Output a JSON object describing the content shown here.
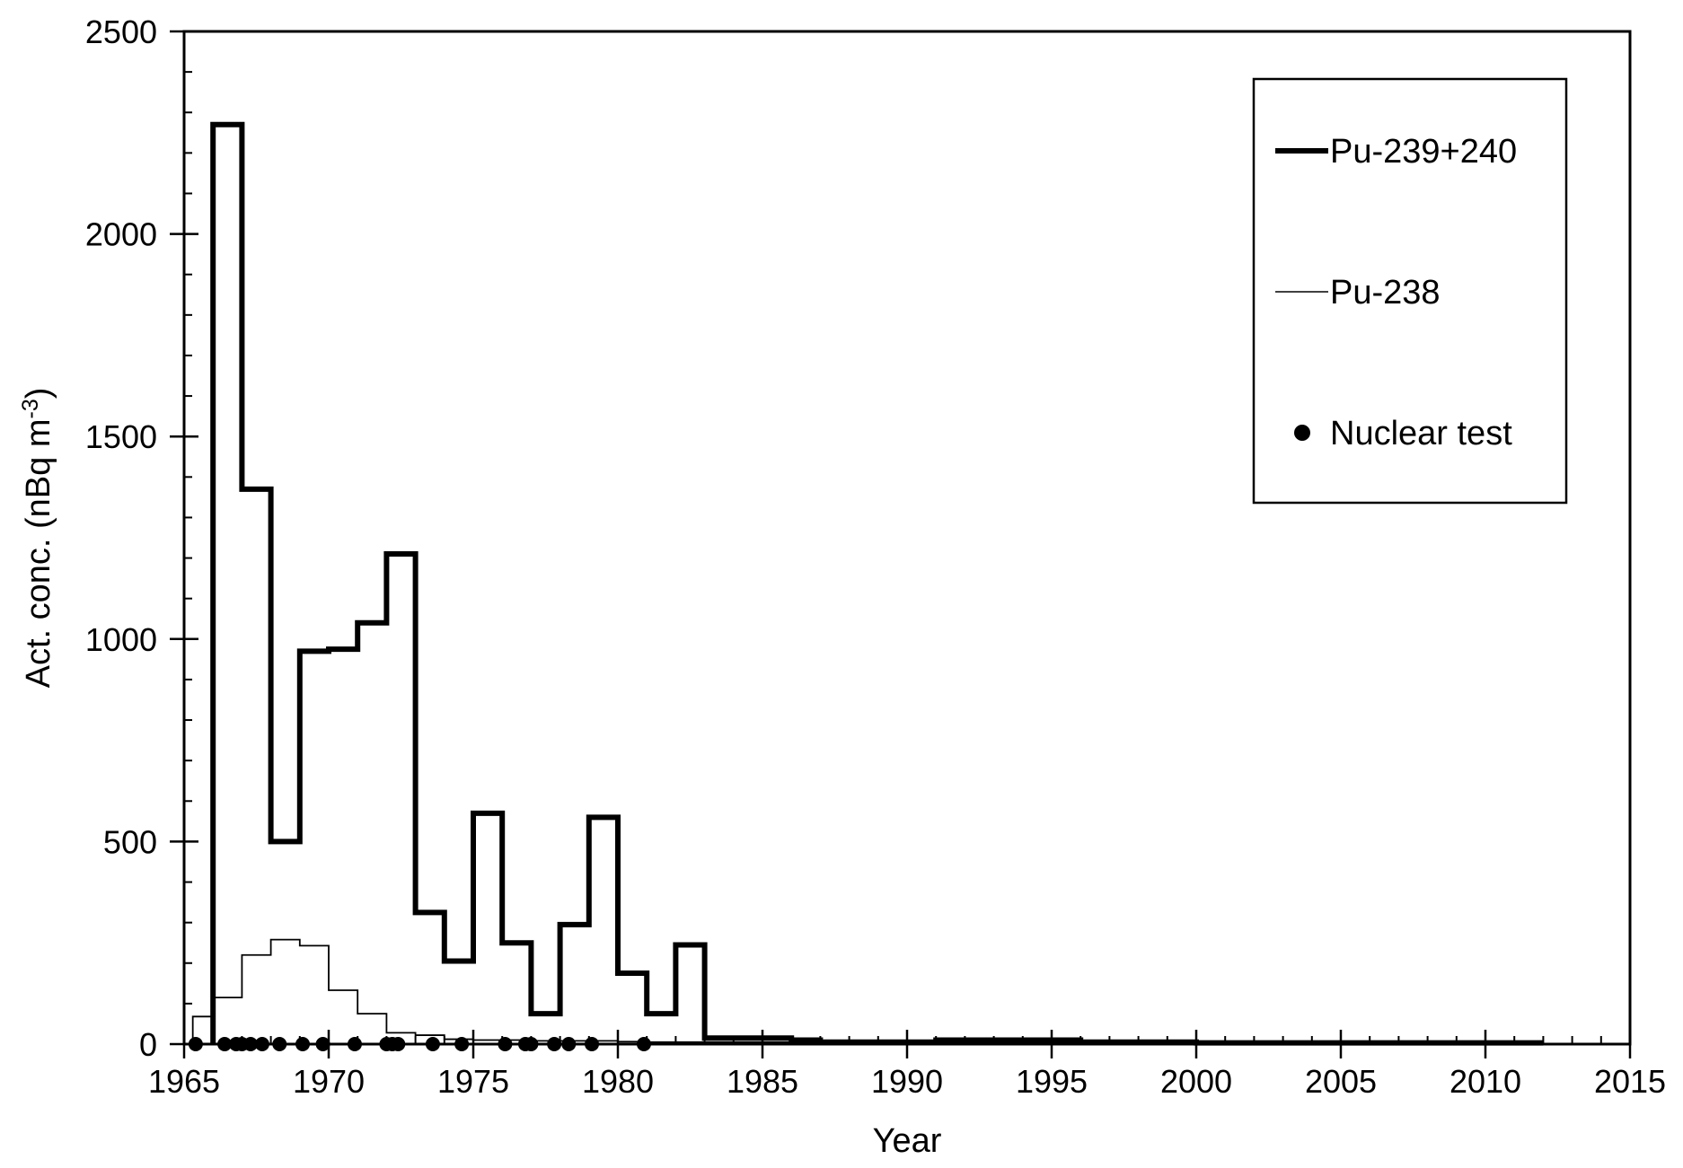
{
  "chart_data": {
    "type": "line",
    "title": "",
    "xlabel": "Year",
    "ylabel_main": "Act. conc. (nBq m",
    "ylabel_sup": "-3",
    "ylabel_close": ")",
    "xlim": [
      1965,
      2015
    ],
    "ylim": [
      0,
      2500
    ],
    "x_ticks": [
      1965,
      1970,
      1975,
      1980,
      1985,
      1990,
      1995,
      2000,
      2005,
      2010,
      2015
    ],
    "y_ticks": [
      0,
      500,
      1000,
      1500,
      2000,
      2500
    ],
    "x_minor_step": 1,
    "y_minor_step": 100,
    "grid": false,
    "legend_position": "top-right",
    "series": [
      {
        "name": "Pu-239+240",
        "style": "step",
        "line_weight": "thick",
        "color": "#000000",
        "start_years": [
          1966,
          1967,
          1968,
          1969,
          1970,
          1971,
          1972,
          1973,
          1974,
          1975,
          1976,
          1977,
          1978,
          1979,
          1980,
          1981,
          1982,
          1983,
          1984,
          1985,
          1986,
          1987,
          1988,
          1989,
          1990,
          1991,
          1992,
          1993,
          1994,
          1995,
          1996,
          1997,
          1998,
          1999,
          2000,
          2001,
          2002,
          2003,
          2004,
          2005,
          2006,
          2007,
          2008,
          2009,
          2010,
          2011
        ],
        "values": [
          2270,
          1370,
          500,
          970,
          975,
          1040,
          1210,
          325,
          205,
          570,
          250,
          75,
          295,
          560,
          175,
          75,
          245,
          15,
          15,
          15,
          10,
          5,
          5,
          5,
          5,
          10,
          10,
          10,
          10,
          10,
          5,
          5,
          5,
          5,
          3,
          3,
          3,
          3,
          3,
          3,
          3,
          3,
          3,
          3,
          3,
          3
        ],
        "end_year": 2012
      },
      {
        "name": "Pu-238",
        "style": "step",
        "line_weight": "thin",
        "color": "#000000",
        "start_years": [
          1965.3,
          1966,
          1967,
          1968,
          1969,
          1970,
          1971,
          1972,
          1973,
          1974,
          1975,
          1976,
          1977,
          1978,
          1979,
          1980,
          1981,
          1982
        ],
        "values": [
          68,
          115,
          220,
          258,
          243,
          133,
          75,
          28,
          22,
          12,
          10,
          10,
          8,
          8,
          8,
          6,
          5,
          5
        ],
        "end_year": 2012
      },
      {
        "name": "Nuclear test",
        "style": "marker",
        "color": "#000000",
        "x": [
          1965.4,
          1966.4,
          1966.8,
          1967.0,
          1967.3,
          1967.7,
          1968.3,
          1969.1,
          1969.8,
          1970.9,
          1972.0,
          1972.2,
          1972.4,
          1973.6,
          1974.6,
          1976.1,
          1976.8,
          1977.0,
          1977.8,
          1978.3,
          1979.1,
          1980.9
        ],
        "y": [
          0,
          0,
          0,
          0,
          0,
          0,
          0,
          0,
          0,
          0,
          0,
          0,
          0,
          0,
          0,
          0,
          0,
          0,
          0,
          0,
          0,
          0
        ]
      }
    ]
  }
}
